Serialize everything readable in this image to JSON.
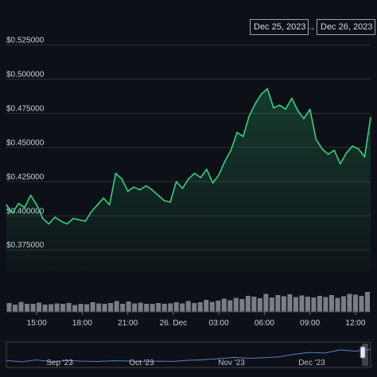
{
  "header": {
    "from_date": "Dec 25, 2023",
    "to_date": "Dec 26, 2023",
    "arrow": "→"
  },
  "chart_data": {
    "type": "area",
    "ylim": [
      0.36,
      0.53
    ],
    "yticks": [
      "$0.525000",
      "$0.500000",
      "$0.475000",
      "$0.450000",
      "$0.425000",
      "$0.400000",
      "$0.375000"
    ],
    "ytick_values": [
      0.525,
      0.5,
      0.475,
      0.45,
      0.425,
      0.4,
      0.375
    ],
    "xtick_labels": [
      "15:00",
      "18:00",
      "21:00",
      "26. Dec",
      "03:00",
      "06:00",
      "09:00",
      "12:00"
    ],
    "xtick_hours": [
      15,
      18,
      21,
      24,
      27,
      30,
      33,
      36
    ],
    "x_hours": [
      13.0,
      13.4,
      13.8,
      14.2,
      14.6,
      15.0,
      15.4,
      15.8,
      16.2,
      16.6,
      17.0,
      17.4,
      17.8,
      18.2,
      18.6,
      19.0,
      19.4,
      19.8,
      20.2,
      20.6,
      21.0,
      21.4,
      21.8,
      22.2,
      22.6,
      23.0,
      23.4,
      23.8,
      24.2,
      24.6,
      25.0,
      25.4,
      25.8,
      26.2,
      26.6,
      27.0,
      27.4,
      27.8,
      28.2,
      28.6,
      29.0,
      29.4,
      29.8,
      30.2,
      30.6,
      31.0,
      31.4,
      31.8,
      32.2,
      32.6,
      33.0,
      33.4,
      33.8,
      34.2,
      34.6,
      35.0,
      35.4,
      35.8,
      36.2,
      36.6,
      37.0
    ],
    "values": [
      0.408,
      0.402,
      0.409,
      0.406,
      0.415,
      0.408,
      0.398,
      0.394,
      0.399,
      0.396,
      0.394,
      0.398,
      0.397,
      0.396,
      0.403,
      0.408,
      0.413,
      0.408,
      0.431,
      0.427,
      0.418,
      0.421,
      0.419,
      0.422,
      0.419,
      0.415,
      0.411,
      0.41,
      0.425,
      0.42,
      0.427,
      0.431,
      0.428,
      0.434,
      0.424,
      0.43,
      0.44,
      0.448,
      0.461,
      0.458,
      0.473,
      0.482,
      0.489,
      0.493,
      0.479,
      0.481,
      0.478,
      0.486,
      0.477,
      0.471,
      0.478,
      0.456,
      0.449,
      0.445,
      0.448,
      0.438,
      0.446,
      0.451,
      0.449,
      0.443,
      0.472
    ],
    "volume": [
      0.22,
      0.18,
      0.25,
      0.2,
      0.2,
      0.23,
      0.18,
      0.19,
      0.21,
      0.2,
      0.22,
      0.17,
      0.2,
      0.19,
      0.24,
      0.21,
      0.2,
      0.22,
      0.27,
      0.2,
      0.26,
      0.21,
      0.23,
      0.2,
      0.2,
      0.22,
      0.2,
      0.21,
      0.24,
      0.21,
      0.27,
      0.22,
      0.24,
      0.3,
      0.25,
      0.28,
      0.33,
      0.29,
      0.35,
      0.32,
      0.4,
      0.38,
      0.34,
      0.45,
      0.36,
      0.42,
      0.39,
      0.44,
      0.37,
      0.41,
      0.38,
      0.36,
      0.4,
      0.37,
      0.42,
      0.35,
      0.39,
      0.45,
      0.43,
      0.4,
      0.5
    ],
    "navigator": {
      "labels": [
        "Sep '23",
        "Oct '23",
        "Nov '23",
        "Dec '23"
      ],
      "values": [
        0.38,
        0.37,
        0.385,
        0.37,
        0.38,
        0.375,
        0.372,
        0.378,
        0.376,
        0.37,
        0.375,
        0.373,
        0.382,
        0.386,
        0.395,
        0.405,
        0.398,
        0.403,
        0.41,
        0.43,
        0.445,
        0.44,
        0.465,
        0.455,
        0.47
      ],
      "selected_fraction": [
        0.985,
        1.0
      ]
    },
    "colors": {
      "line": "#35d07f",
      "volume": "#8b929a",
      "grid": "#2a3038",
      "nav_line": "#5b7fc7"
    },
    "grid": true
  }
}
